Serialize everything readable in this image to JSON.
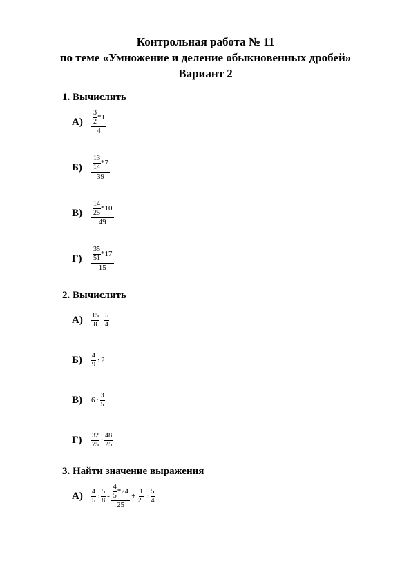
{
  "title": {
    "line1": "Контрольная работа № 11",
    "line2": "по теме «Умножение и деление обыкновенных дробей»",
    "line3": "Вариант 2"
  },
  "sections": {
    "s1": {
      "header": "1. Вычислить",
      "a_label": "А)",
      "a_nfrac_n": "3",
      "a_nfrac_d": "2",
      "a_mul": "1",
      "a_den": "4",
      "b_label": "Б)",
      "b_nfrac_n": "13",
      "b_nfrac_d": "14",
      "b_mul": "7",
      "b_den": "39",
      "c_label": "В)",
      "c_nfrac_n": "14",
      "c_nfrac_d": "25",
      "c_mul": "10",
      "c_den": "49",
      "d_label": "Г)",
      "d_nfrac_n": "35",
      "d_nfrac_d": "51",
      "d_mul": "17",
      "d_den": "15"
    },
    "s2": {
      "header": "2. Вычислить",
      "a_label": "А)",
      "a_f1n": "15",
      "a_f1d": "8",
      "a_f2n": "5",
      "a_f2d": "4",
      "b_label": "Б)",
      "b_f1n": "4",
      "b_f1d": "9",
      "b_rhs": "2",
      "c_label": "В)",
      "c_lhs": "6",
      "c_f1n": "3",
      "c_f1d": "5",
      "d_label": "Г)",
      "d_f1n": "32",
      "d_f1d": "75",
      "d_f2n": "48",
      "d_f2d": "25"
    },
    "s3": {
      "header": "3. Найти значение выражения",
      "a_label": "А)",
      "a_f1n": "4",
      "a_f1d": "5",
      "a_f2n": "5",
      "a_f2d": "8",
      "a_bigtop_fn": "4",
      "a_bigtop_fd": "5",
      "a_bigtop_mul": "24",
      "a_bigbot": "25",
      "a_f4n": "1",
      "a_f4d": "25",
      "a_f5n": "5",
      "a_f5d": "4"
    }
  },
  "symbols": {
    "star": "*",
    "colon": ":",
    "plus": "+",
    "minus": "-"
  },
  "style": {
    "text_color": "#000000",
    "background_color": "#ffffff"
  }
}
